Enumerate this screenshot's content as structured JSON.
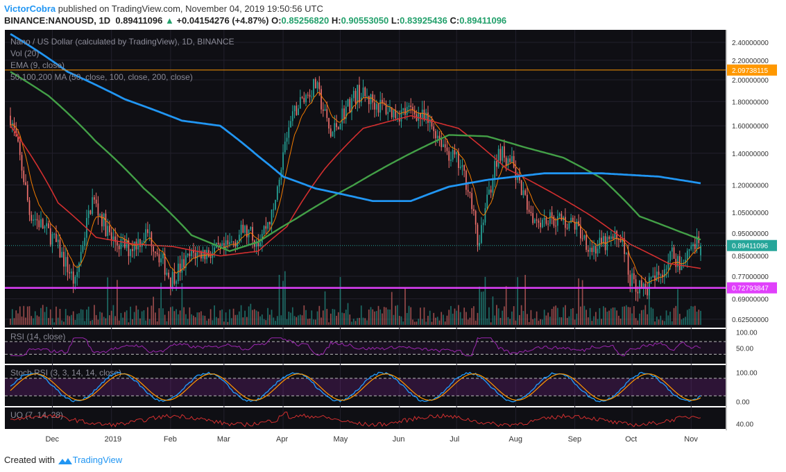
{
  "header": {
    "author": "VictorCobra",
    "published": "published on TradingView.com, November 04, 2019 19:50:56 UTC",
    "symbol": "BINANCE:NANOUSD, 1D",
    "last": "0.89411096",
    "change_arrow": "▲",
    "change": "+0.04154276 (+4.87%)",
    "o_label": "O:",
    "o_value": "0.85256820",
    "h_label": "H:",
    "h_value": "0.90553050",
    "l_label": "L:",
    "l_value": "0.83925436",
    "c_label": "C:",
    "c_value": "0.89411096"
  },
  "footer": {
    "created_with": "Created with",
    "brand": "TradingView"
  },
  "colors": {
    "bg": "#0f0f14",
    "up": "#26a69a",
    "down": "#ef6f6c",
    "ema": "#f57c00",
    "ma50": "#d32f2f",
    "ma100": "#43a047",
    "ma200": "#2196f3",
    "resistance": "#ff9800",
    "support": "#e040fb",
    "rsi": "#9c27b0",
    "stoch_k": "#2196f3",
    "stoch_d": "#ff9800",
    "uo": "#d32f2f"
  },
  "chart_data": {
    "type": "candlestick",
    "title": "Nano / US Dollar (calculated by TradingView), 1D, BINANCE",
    "legend": [
      "Nano / US Dollar (calculated by TradingView), 1D, BINANCE",
      "Vol (20)",
      "EMA (9, close)",
      "50,100,200 MA (50, close, 100, close, 200, close)"
    ],
    "price_axis_ticks": [
      "2.40000000",
      "2.20000000",
      "2.00000000",
      "1.80000000",
      "1.60000000",
      "1.40000000",
      "1.20000000",
      "1.05000000",
      "0.95000000",
      "0.85000000",
      "0.77000000",
      "0.69000000",
      "0.62500000"
    ],
    "price_axis_values": [
      2.4,
      2.2,
      2.0,
      1.8,
      1.6,
      1.4,
      1.2,
      1.05,
      0.95,
      0.85,
      0.77,
      0.69,
      0.625
    ],
    "price_range": [
      0.6,
      2.55
    ],
    "x_labels": [
      "Dec",
      "2019",
      "Feb",
      "Mar",
      "Apr",
      "May",
      "Jun",
      "Jul",
      "Aug",
      "Sep",
      "Oct",
      "Nov"
    ],
    "x_label_days": [
      22,
      53,
      84,
      112,
      143,
      173,
      204,
      234,
      265,
      296,
      326,
      357
    ],
    "last_day": 362,
    "levels": [
      {
        "name": "resistance",
        "value": 2.09738115,
        "label": "2.09738115"
      },
      {
        "name": "last-price",
        "value": 0.89411096,
        "label": "0.89411096"
      },
      {
        "name": "support",
        "value": 0.72793847,
        "label": "0.72793847"
      }
    ],
    "price_path": [
      [
        0,
        1.68
      ],
      [
        10,
        1.05
      ],
      [
        22,
        0.93
      ],
      [
        34,
        0.74
      ],
      [
        43,
        1.12
      ],
      [
        53,
        0.92
      ],
      [
        62,
        0.88
      ],
      [
        72,
        0.95
      ],
      [
        84,
        0.76
      ],
      [
        96,
        0.86
      ],
      [
        112,
        0.87
      ],
      [
        122,
        0.96
      ],
      [
        130,
        0.92
      ],
      [
        138,
        1.05
      ],
      [
        143,
        1.4
      ],
      [
        150,
        1.75
      ],
      [
        160,
        1.95
      ],
      [
        168,
        1.52
      ],
      [
        175,
        1.72
      ],
      [
        182,
        1.88
      ],
      [
        192,
        1.78
      ],
      [
        202,
        1.7
      ],
      [
        212,
        1.72
      ],
      [
        222,
        1.58
      ],
      [
        230,
        1.4
      ],
      [
        234,
        1.35
      ],
      [
        240,
        1.2
      ],
      [
        245,
        0.9
      ],
      [
        250,
        1.1
      ],
      [
        256,
        1.42
      ],
      [
        262,
        1.36
      ],
      [
        268,
        1.15
      ],
      [
        275,
        1.02
      ],
      [
        285,
        1.02
      ],
      [
        296,
        0.99
      ],
      [
        305,
        0.88
      ],
      [
        312,
        0.9
      ],
      [
        320,
        0.94
      ],
      [
        325,
        0.76
      ],
      [
        332,
        0.72
      ],
      [
        340,
        0.77
      ],
      [
        347,
        0.86
      ],
      [
        352,
        0.82
      ],
      [
        357,
        0.9
      ],
      [
        362,
        0.894
      ]
    ],
    "ma200_path": [
      [
        0,
        2.5
      ],
      [
        30,
        2.08
      ],
      [
        60,
        1.82
      ],
      [
        90,
        1.64
      ],
      [
        110,
        1.6
      ],
      [
        130,
        1.38
      ],
      [
        143,
        1.25
      ],
      [
        160,
        1.18
      ],
      [
        190,
        1.11
      ],
      [
        210,
        1.11
      ],
      [
        230,
        1.19
      ],
      [
        250,
        1.23
      ],
      [
        280,
        1.27
      ],
      [
        310,
        1.27
      ],
      [
        340,
        1.25
      ],
      [
        362,
        1.21
      ]
    ],
    "ma100_path": [
      [
        0,
        2.08
      ],
      [
        20,
        1.85
      ],
      [
        45,
        1.48
      ],
      [
        70,
        1.18
      ],
      [
        95,
        0.94
      ],
      [
        115,
        0.87
      ],
      [
        130,
        0.91
      ],
      [
        150,
        1.02
      ],
      [
        180,
        1.2
      ],
      [
        210,
        1.4
      ],
      [
        230,
        1.53
      ],
      [
        250,
        1.52
      ],
      [
        270,
        1.44
      ],
      [
        290,
        1.37
      ],
      [
        310,
        1.24
      ],
      [
        330,
        1.03
      ],
      [
        350,
        0.96
      ],
      [
        362,
        0.92
      ]
    ],
    "ma50_path": [
      [
        0,
        1.6
      ],
      [
        25,
        1.1
      ],
      [
        45,
        0.93
      ],
      [
        65,
        0.9
      ],
      [
        85,
        0.89
      ],
      [
        110,
        0.85
      ],
      [
        130,
        0.87
      ],
      [
        145,
        0.98
      ],
      [
        165,
        1.3
      ],
      [
        185,
        1.58
      ],
      [
        210,
        1.68
      ],
      [
        235,
        1.58
      ],
      [
        260,
        1.3
      ],
      [
        285,
        1.15
      ],
      [
        305,
        1.03
      ],
      [
        325,
        0.9
      ],
      [
        345,
        0.82
      ],
      [
        362,
        0.8
      ]
    ],
    "indicators": [
      {
        "name": "RSI (14, close)",
        "ticks": [
          "100.00",
          "50.00"
        ],
        "tick_values": [
          100,
          50
        ],
        "range": [
          0,
          110
        ],
        "bands": [
          70,
          30
        ]
      },
      {
        "name": "Stoch RSI (3, 3, 14, 14, close)",
        "ticks": [
          "100.00",
          "0.00"
        ],
        "tick_values": [
          100,
          0
        ],
        "range": [
          -15,
          125
        ],
        "bands": [
          80,
          20
        ]
      },
      {
        "name": "UO (7, 14, 28)",
        "ticks": [
          "40.00"
        ],
        "tick_values": [
          40
        ],
        "range": [
          28,
          78
        ]
      }
    ]
  }
}
